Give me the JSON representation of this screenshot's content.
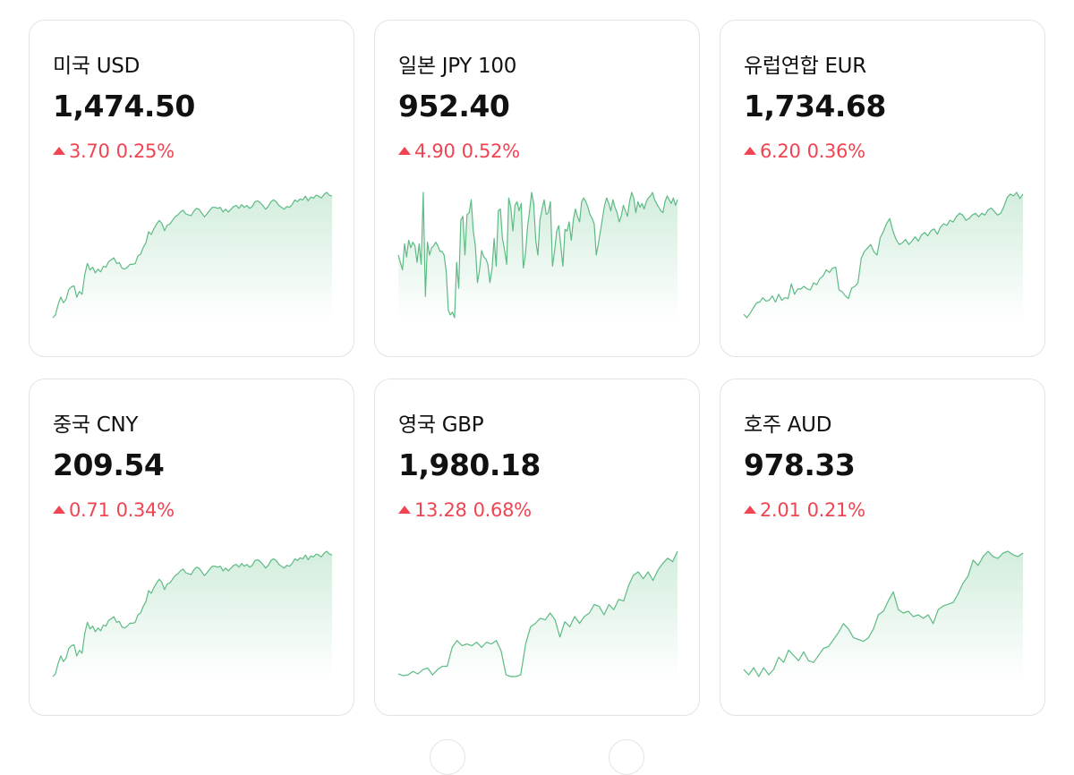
{
  "cards": [
    {
      "name": "미국 USD",
      "rate": "1,474.50",
      "change": "3.70",
      "percent": "0.25%",
      "direction": "up",
      "chart_data": {
        "type": "area",
        "values": [
          0,
          3,
          14,
          22,
          16,
          20,
          30,
          33,
          34,
          22,
          28,
          25,
          46,
          58,
          51,
          54,
          48,
          52,
          49,
          55,
          54,
          60,
          62,
          64,
          58,
          59,
          53,
          52,
          54,
          57,
          57,
          58,
          66,
          68,
          75,
          80,
          92,
          89,
          95,
          100,
          104,
          101,
          93,
          99,
          100,
          104,
          108,
          110,
          113,
          115,
          111,
          110,
          109,
          114,
          117,
          116,
          112,
          108,
          111,
          115,
          118,
          118,
          117,
          118,
          113,
          116,
          113,
          116,
          119,
          120,
          117,
          121,
          118,
          120,
          117,
          119,
          124,
          125,
          123,
          120,
          116,
          119,
          124,
          126,
          124,
          120,
          118,
          116,
          119,
          118,
          121,
          126,
          124,
          127,
          126,
          130,
          125,
          129,
          128,
          131,
          130,
          128,
          132,
          134,
          131,
          130
        ]
      }
    },
    {
      "name": "일본 JPY 100",
      "rate": "952.40",
      "change": "4.90",
      "percent": "0.52%",
      "direction": "up",
      "chart_data": {
        "type": "area",
        "values": [
          70,
          62,
          54,
          82,
          68,
          86,
          78,
          84,
          80,
          62,
          82,
          60,
          138,
          25,
          84,
          70,
          78,
          80,
          84,
          80,
          74,
          74,
          70,
          52,
          10,
          5,
          8,
          2,
          62,
          34,
          108,
          112,
          70,
          114,
          116,
          130,
          96,
          80,
          40,
          54,
          75,
          68,
          66,
          60,
          40,
          55,
          88,
          58,
          118,
          120,
          88,
          76,
          60,
          132,
          122,
          96,
          124,
          128,
          118,
          126,
          56,
          70,
          100,
          118,
          138,
          126,
          85,
          70,
          108,
          120,
          130,
          114,
          116,
          128,
          58,
          74,
          96,
          102,
          80,
          58,
          98,
          96,
          106,
          86,
          108,
          120,
          112,
          106,
          128,
          132,
          128,
          122,
          114,
          110,
          104,
          70,
          82,
          96,
          110,
          124,
          132,
          126,
          118,
          130,
          122,
          116,
          106,
          112,
          124,
          118,
          112,
          128,
          138,
          132,
          116,
          128,
          122,
          126,
          120,
          128,
          132,
          134,
          138,
          130,
          126,
          122,
          118,
          116,
          128,
          134,
          130,
          126,
          132,
          124,
          130
        ]
      }
    },
    {
      "name": "유럽연합 EUR",
      "rate": "1,734.68",
      "change": "6.20",
      "percent": "0.36%",
      "direction": "up",
      "chart_data": {
        "type": "area",
        "values": [
          4,
          0,
          5,
          11,
          17,
          18,
          23,
          19,
          20,
          25,
          18,
          27,
          20,
          23,
          22,
          39,
          27,
          33,
          33,
          36,
          33,
          32,
          40,
          38,
          45,
          48,
          55,
          52,
          57,
          58,
          32,
          30,
          25,
          22,
          34,
          36,
          40,
          68,
          76,
          80,
          84,
          76,
          72,
          92,
          99,
          108,
          114,
          100,
          90,
          84,
          86,
          90,
          84,
          88,
          93,
          88,
          95,
          98,
          94,
          100,
          102,
          96,
          104,
          108,
          106,
          112,
          110,
          116,
          120,
          118,
          112,
          114,
          118,
          120,
          116,
          120,
          118,
          124,
          126,
          122,
          118,
          120,
          128,
          138,
          142,
          140,
          144,
          137,
          142
        ]
      }
    },
    {
      "name": "중국 CNY",
      "rate": "209.54",
      "change": "0.71",
      "percent": "0.34%",
      "direction": "up",
      "chart_data": {
        "type": "area",
        "values": [
          0,
          3,
          14,
          22,
          16,
          20,
          30,
          33,
          34,
          22,
          28,
          25,
          46,
          58,
          51,
          54,
          48,
          52,
          49,
          55,
          54,
          60,
          62,
          64,
          58,
          59,
          53,
          52,
          54,
          57,
          57,
          58,
          66,
          68,
          75,
          80,
          92,
          89,
          95,
          100,
          104,
          101,
          93,
          99,
          100,
          104,
          108,
          110,
          113,
          115,
          111,
          110,
          109,
          114,
          117,
          116,
          112,
          108,
          111,
          115,
          118,
          118,
          117,
          118,
          113,
          116,
          113,
          116,
          119,
          120,
          117,
          121,
          118,
          120,
          117,
          119,
          124,
          125,
          123,
          120,
          116,
          119,
          124,
          126,
          124,
          120,
          118,
          116,
          119,
          118,
          121,
          126,
          124,
          127,
          126,
          130,
          125,
          129,
          128,
          131,
          130,
          128,
          132,
          134,
          131,
          130
        ]
      }
    },
    {
      "name": "영국 GBP",
      "rate": "1,980.18",
      "change": "13.28",
      "percent": "0.68%",
      "direction": "up",
      "chart_data": {
        "type": "area",
        "values": [
          5,
          3,
          4,
          8,
          5,
          10,
          12,
          4,
          10,
          14,
          14,
          36,
          44,
          38,
          40,
          38,
          42,
          36,
          42,
          40,
          44,
          32,
          4,
          2,
          2,
          4,
          40,
          60,
          64,
          70,
          68,
          76,
          68,
          48,
          66,
          60,
          72,
          64,
          72,
          76,
          86,
          84,
          74,
          86,
          80,
          92,
          90,
          108,
          120,
          124,
          116,
          124,
          114,
          126,
          134,
          140,
          136,
          148
        ]
      }
    },
    {
      "name": "호주 AUD",
      "rate": "978.33",
      "change": "2.01",
      "percent": "0.21%",
      "direction": "up",
      "chart_data": {
        "type": "area",
        "values": [
          12,
          6,
          14,
          4,
          14,
          6,
          12,
          26,
          20,
          34,
          28,
          22,
          32,
          22,
          20,
          28,
          36,
          38,
          46,
          54,
          64,
          58,
          48,
          46,
          44,
          48,
          58,
          74,
          78,
          90,
          100,
          80,
          76,
          78,
          72,
          74,
          70,
          74,
          64,
          80,
          84,
          86,
          88,
          98,
          110,
          118,
          136,
          130,
          140,
          146,
          140,
          138,
          144,
          146,
          142,
          140,
          144
        ]
      }
    }
  ]
}
